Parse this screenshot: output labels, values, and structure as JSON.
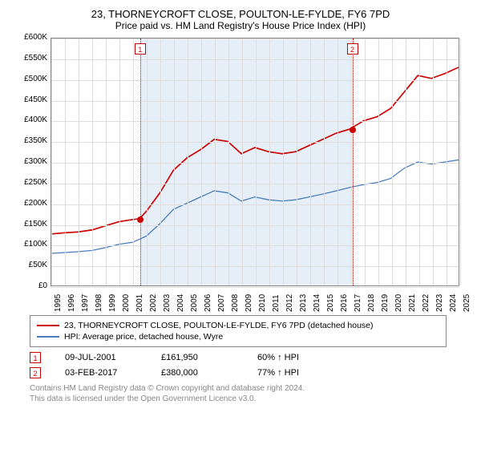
{
  "title": "23, THORNEYCROFT CLOSE, POULTON-LE-FYLDE, FY6 7PD",
  "subtitle": "Price paid vs. HM Land Registry's House Price Index (HPI)",
  "chart": {
    "type": "line",
    "ylim": [
      0,
      600000
    ],
    "ytick_step": 50000,
    "yticks": [
      "£0",
      "£50K",
      "£100K",
      "£150K",
      "£200K",
      "£250K",
      "£300K",
      "£350K",
      "£400K",
      "£450K",
      "£500K",
      "£550K",
      "£600K"
    ],
    "xlim": [
      1995,
      2025
    ],
    "xticks": [
      1995,
      1996,
      1997,
      1998,
      1999,
      2000,
      2001,
      2002,
      2003,
      2004,
      2005,
      2006,
      2007,
      2008,
      2009,
      2010,
      2011,
      2012,
      2013,
      2014,
      2015,
      2016,
      2017,
      2018,
      2019,
      2020,
      2021,
      2022,
      2023,
      2024,
      2025
    ],
    "grid_color": "#dddddd",
    "background_color": "#ffffff",
    "shade_color": "#e6eef7",
    "shade_range": [
      2001.52,
      2017.09
    ],
    "series": [
      {
        "name": "property",
        "label": "23, THORNEYCROFT CLOSE, POULTON-LE-FYLDE, FY6 7PD (detached house)",
        "color": "#cc0000",
        "width": 1.7,
        "data": [
          [
            1995,
            125000
          ],
          [
            1996,
            128000
          ],
          [
            1997,
            130000
          ],
          [
            1998,
            135000
          ],
          [
            1999,
            145000
          ],
          [
            2000,
            155000
          ],
          [
            2001,
            160000
          ],
          [
            2001.5,
            162000
          ],
          [
            2002,
            180000
          ],
          [
            2003,
            225000
          ],
          [
            2004,
            280000
          ],
          [
            2005,
            310000
          ],
          [
            2006,
            330000
          ],
          [
            2007,
            355000
          ],
          [
            2008,
            350000
          ],
          [
            2009,
            320000
          ],
          [
            2010,
            335000
          ],
          [
            2011,
            325000
          ],
          [
            2012,
            320000
          ],
          [
            2013,
            325000
          ],
          [
            2014,
            340000
          ],
          [
            2015,
            355000
          ],
          [
            2016,
            370000
          ],
          [
            2017,
            380000
          ],
          [
            2018,
            400000
          ],
          [
            2019,
            410000
          ],
          [
            2020,
            430000
          ],
          [
            2021,
            470000
          ],
          [
            2022,
            510000
          ],
          [
            2023,
            503000
          ],
          [
            2024,
            515000
          ],
          [
            2025,
            530000
          ]
        ]
      },
      {
        "name": "hpi",
        "label": "HPI: Average price, detached house, Wyre",
        "color": "#4a7ebb",
        "width": 1.3,
        "data": [
          [
            1995,
            78000
          ],
          [
            1996,
            80000
          ],
          [
            1997,
            82000
          ],
          [
            1998,
            85000
          ],
          [
            1999,
            92000
          ],
          [
            2000,
            100000
          ],
          [
            2001,
            105000
          ],
          [
            2002,
            120000
          ],
          [
            2003,
            150000
          ],
          [
            2004,
            185000
          ],
          [
            2005,
            200000
          ],
          [
            2006,
            215000
          ],
          [
            2007,
            230000
          ],
          [
            2008,
            225000
          ],
          [
            2009,
            205000
          ],
          [
            2010,
            215000
          ],
          [
            2011,
            208000
          ],
          [
            2012,
            205000
          ],
          [
            2013,
            208000
          ],
          [
            2014,
            215000
          ],
          [
            2015,
            222000
          ],
          [
            2016,
            230000
          ],
          [
            2017,
            238000
          ],
          [
            2018,
            245000
          ],
          [
            2019,
            250000
          ],
          [
            2020,
            260000
          ],
          [
            2021,
            285000
          ],
          [
            2022,
            300000
          ],
          [
            2023,
            295000
          ],
          [
            2024,
            300000
          ],
          [
            2025,
            305000
          ]
        ]
      }
    ],
    "markers": [
      {
        "id": "1",
        "x": 2001.52,
        "y": 161950,
        "color": "#cc0000"
      },
      {
        "id": "2",
        "x": 2017.09,
        "y": 380000,
        "color": "#cc0000"
      }
    ]
  },
  "legend": [
    {
      "color": "#cc0000",
      "label": "23, THORNEYCROFT CLOSE, POULTON-LE-FYLDE, FY6 7PD (detached house)"
    },
    {
      "color": "#4a7ebb",
      "label": "HPI: Average price, detached house, Wyre"
    }
  ],
  "transactions": [
    {
      "id": "1",
      "color": "#cc0000",
      "date": "09-JUL-2001",
      "price": "£161,950",
      "hpi": "60% ↑ HPI"
    },
    {
      "id": "2",
      "color": "#cc0000",
      "date": "03-FEB-2017",
      "price": "£380,000",
      "hpi": "77% ↑ HPI"
    }
  ],
  "footnote_l1": "Contains HM Land Registry data © Crown copyright and database right 2024.",
  "footnote_l2": "This data is licensed under the Open Government Licence v3.0."
}
